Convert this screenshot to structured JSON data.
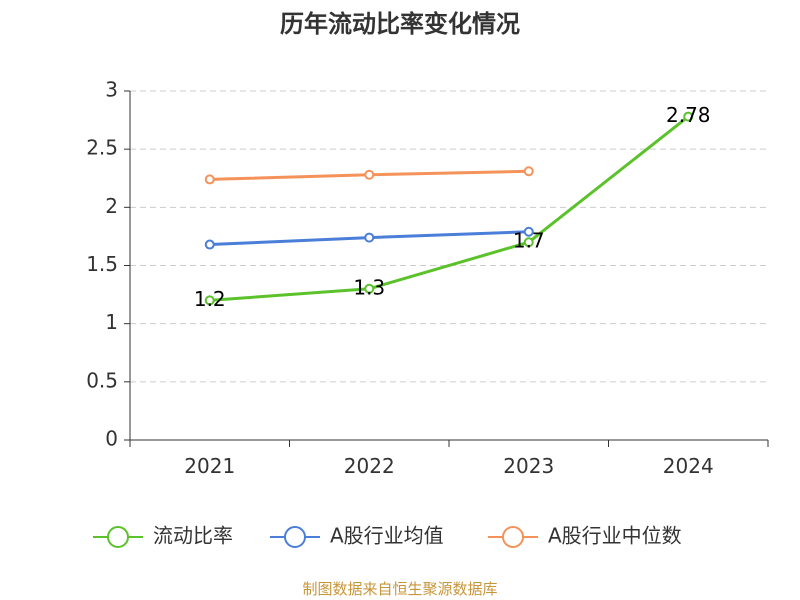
{
  "chart_data": {
    "type": "line",
    "title": "历年流动比率变化情况",
    "categories": [
      "2021",
      "2022",
      "2023",
      "2024"
    ],
    "ylim": [
      0,
      3
    ],
    "yticks": [
      "0",
      "0.5",
      "1",
      "1.5",
      "2",
      "2.5",
      "3"
    ],
    "grid": true,
    "legend_position": "bottom",
    "series": [
      {
        "name": "流动比率",
        "color": "#5cc22b",
        "values": [
          1.2,
          1.3,
          1.7,
          2.78
        ],
        "labels": [
          "1.2",
          "1.3",
          "1.7",
          "2.78"
        ]
      },
      {
        "name": "A股行业均值",
        "color": "#4a7ed9",
        "values": [
          1.68,
          1.74,
          1.79,
          null
        ]
      },
      {
        "name": "A股行业中位数",
        "color": "#f5925a",
        "values": [
          2.24,
          2.28,
          2.31,
          null
        ]
      }
    ]
  },
  "footer": {
    "source": "制图数据来自恒生聚源数据库"
  }
}
